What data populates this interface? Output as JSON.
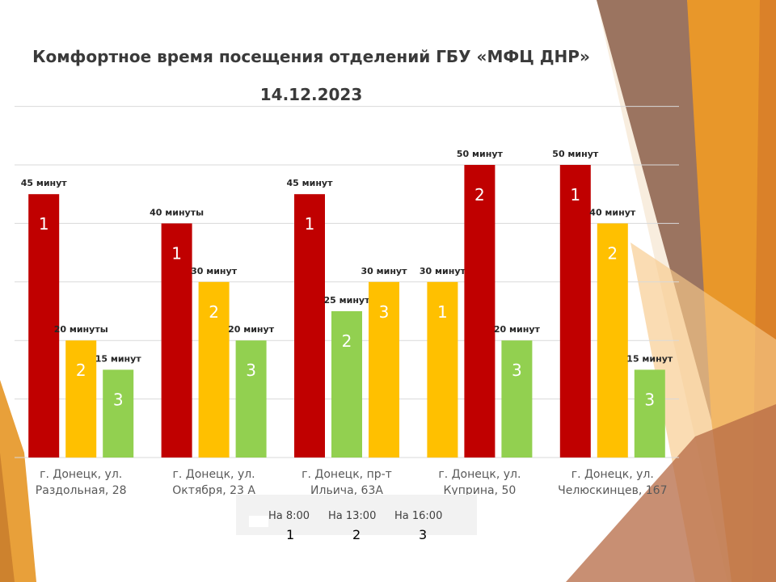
{
  "title": "Комфортное время посещения отделений ГБУ «МФЦ ДНР»",
  "subtitle": "14.12.2023",
  "colors": {
    "red": "#c00000",
    "yellow": "#ffc000",
    "green": "#92d050"
  },
  "chart_data": {
    "type": "bar",
    "title": "Комфортное время посещения отделений ГБУ «МФЦ ДНР»",
    "subtitle": "14.12.2023",
    "xlabel": "",
    "ylabel": "",
    "ylim": [
      0,
      60
    ],
    "grid": true,
    "legend_position": "bottom",
    "categories": [
      [
        "г. Донецк, ул.",
        "Раздольная, 28"
      ],
      [
        "г. Донецк, ул.",
        "Октября, 23 А"
      ],
      [
        "г. Донецк, пр-т",
        "Ильича, 63А"
      ],
      [
        "г. Донецк, ул.",
        "Куприна, 50"
      ],
      [
        "г. Донецк, ул.",
        "Челюскинцев, 167"
      ]
    ],
    "series": [
      {
        "name": "На 8:00",
        "values": [
          45,
          40,
          45,
          30,
          50
        ]
      },
      {
        "name": "На 13:00",
        "values": [
          20,
          30,
          25,
          50,
          40
        ]
      },
      {
        "name": "На 16:00",
        "values": [
          15,
          20,
          30,
          20,
          15
        ]
      }
    ],
    "data_labels": [
      [
        "45 минут",
        "20 минуты",
        "15 минут"
      ],
      [
        "40 минуты",
        "30 минут",
        "20 минут"
      ],
      [
        "45 минут",
        "25 минут",
        "30 минут"
      ],
      [
        "30 минут",
        "50 минут",
        "20 минут"
      ],
      [
        "50 минут",
        "40 минут",
        "15 минут"
      ]
    ],
    "bar_numbers": [
      [
        "1",
        "2",
        "3"
      ],
      [
        "1",
        "2",
        "3"
      ],
      [
        "1",
        "2",
        "3"
      ],
      [
        "1",
        "2",
        "3"
      ],
      [
        "1",
        "2",
        "3"
      ]
    ],
    "bar_colors": [
      [
        "#c00000",
        "#ffc000",
        "#92d050"
      ],
      [
        "#c00000",
        "#ffc000",
        "#92d050"
      ],
      [
        "#c00000",
        "#92d050",
        "#ffc000"
      ],
      [
        "#ffc000",
        "#c00000",
        "#92d050"
      ],
      [
        "#c00000",
        "#ffc000",
        "#92d050"
      ]
    ]
  },
  "legend": {
    "items": [
      {
        "label": "На 8:00",
        "number": "1"
      },
      {
        "label": "На 13:00",
        "number": "2"
      },
      {
        "label": "На 16:00",
        "number": "3"
      }
    ]
  }
}
